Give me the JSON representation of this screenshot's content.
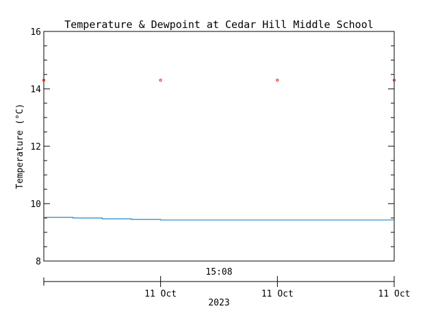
{
  "chart_data": {
    "type": "line",
    "title": "Temperature & Dewpoint at Cedar Hill Middle School",
    "ylabel": "Temperature (°C)",
    "xlabel": "2023",
    "time_label": "15:08",
    "ylim": [
      8,
      16
    ],
    "yticks": [
      8,
      10,
      12,
      14,
      16
    ],
    "xlim": [
      0,
      3
    ],
    "xticks": [
      {
        "x": 1,
        "label": "11 Oct"
      },
      {
        "x": 2,
        "label": "11 Oct"
      },
      {
        "x": 3,
        "label": "11 Oct"
      }
    ],
    "series": [
      {
        "color": "#e01010",
        "style": "points",
        "x": [
          0,
          1,
          2,
          3
        ],
        "y": [
          14.3,
          14.3,
          14.3,
          14.3
        ]
      },
      {
        "color": "#1a86c8",
        "style": "step",
        "x": [
          0,
          0.25,
          0.5,
          0.75,
          1.0,
          3.0
        ],
        "y": [
          9.52,
          9.5,
          9.47,
          9.45,
          9.43,
          9.43
        ]
      }
    ]
  }
}
